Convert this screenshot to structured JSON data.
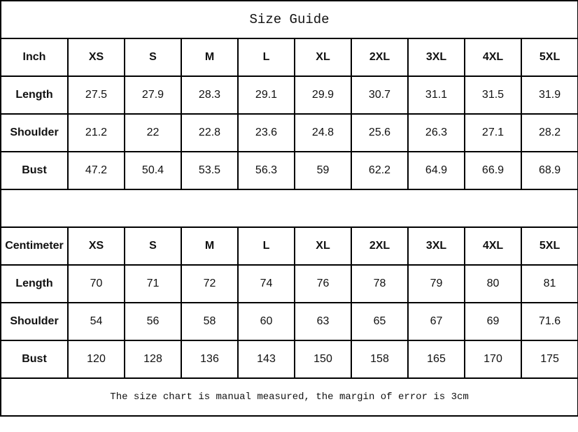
{
  "title": "Size Guide",
  "sizes": [
    "XS",
    "S",
    "M",
    "L",
    "XL",
    "2XL",
    "3XL",
    "4XL",
    "5XL"
  ],
  "tables": [
    {
      "unit": "Inch",
      "rows": [
        {
          "label": "Length",
          "values": [
            "27.5",
            "27.9",
            "28.3",
            "29.1",
            "29.9",
            "30.7",
            "31.1",
            "31.5",
            "31.9"
          ]
        },
        {
          "label": "Shoulder",
          "values": [
            "21.2",
            "22",
            "22.8",
            "23.6",
            "24.8",
            "25.6",
            "26.3",
            "27.1",
            "28.2"
          ]
        },
        {
          "label": "Bust",
          "values": [
            "47.2",
            "50.4",
            "53.5",
            "56.3",
            "59",
            "62.2",
            "64.9",
            "66.9",
            "68.9"
          ]
        }
      ]
    },
    {
      "unit": "Centimeter",
      "rows": [
        {
          "label": "Length",
          "values": [
            "70",
            "71",
            "72",
            "74",
            "76",
            "78",
            "79",
            "80",
            "81"
          ]
        },
        {
          "label": "Shoulder",
          "values": [
            "54",
            "56",
            "58",
            "60",
            "63",
            "65",
            "67",
            "69",
            "71.6"
          ]
        },
        {
          "label": "Bust",
          "values": [
            "120",
            "128",
            "136",
            "143",
            "150",
            "158",
            "165",
            "170",
            "175"
          ]
        }
      ]
    }
  ],
  "note": "The size chart is manual measured, the margin of error is 3cm"
}
